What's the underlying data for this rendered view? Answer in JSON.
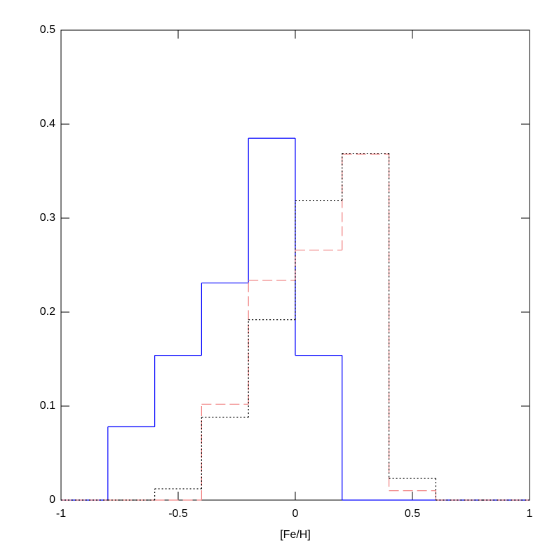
{
  "chart_data": {
    "type": "histogram",
    "xlabel": "[Fe/H]",
    "bins": [
      -1,
      -0.8,
      -0.6,
      -0.4,
      -0.2,
      0,
      0.2,
      0.4,
      0.6,
      0.8,
      1
    ],
    "series": [
      {
        "color": "#0000ff",
        "style": "solid",
        "values": [
          0,
          0.078,
          0.154,
          0.231,
          0.385,
          0.154,
          0,
          0,
          0,
          0
        ]
      },
      {
        "color": "#f08080",
        "style": "dashed",
        "values": [
          0,
          0,
          0,
          0.102,
          0.234,
          0.266,
          0.368,
          0.01,
          0,
          0
        ]
      },
      {
        "color": "#000000",
        "style": "dotted",
        "values": [
          0,
          0,
          0.012,
          0.088,
          0.192,
          0.319,
          0.369,
          0.023,
          0,
          0
        ]
      }
    ],
    "xlim": [
      -1,
      1
    ],
    "ylim": [
      0,
      0.5
    ],
    "xticks": [
      -1,
      -0.5,
      0,
      0.5,
      1
    ],
    "yticks": [
      0,
      0.1,
      0.2,
      0.3,
      0.4,
      0.5
    ]
  }
}
